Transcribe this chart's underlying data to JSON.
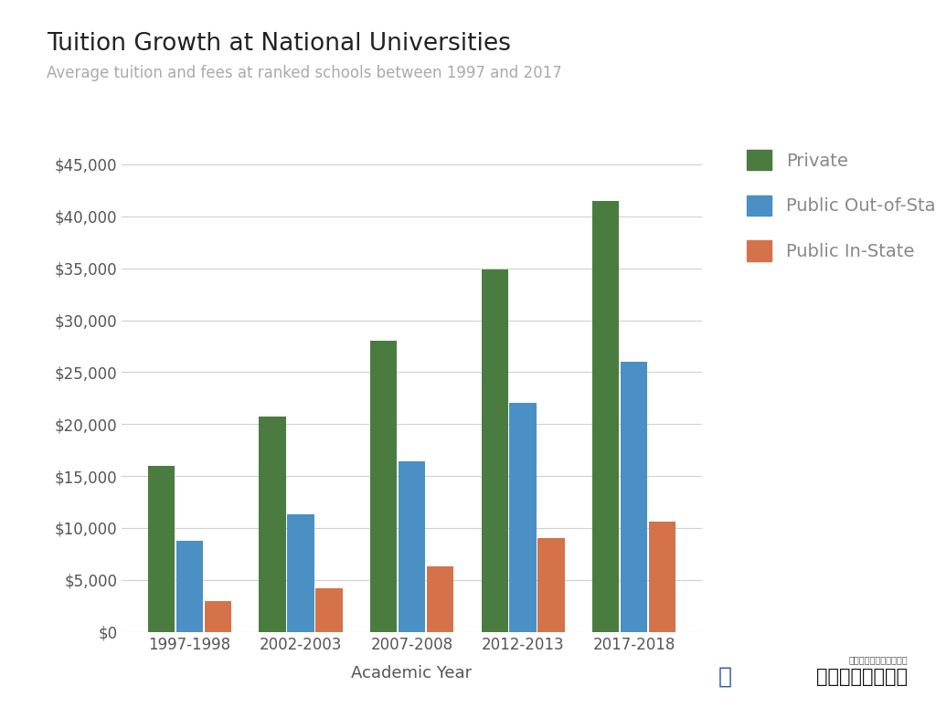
{
  "title": "Tuition Growth at National Universities",
  "subtitle": "Average tuition and fees at ranked schools between 1997 and 2017",
  "xlabel": "Academic Year",
  "categories": [
    "1997-1998",
    "2002-2003",
    "2007-2008",
    "2012-2013",
    "2017-2018"
  ],
  "private": [
    16000,
    20700,
    28000,
    34900,
    41500
  ],
  "public_out": [
    8800,
    11300,
    16400,
    22000,
    26000
  ],
  "public_in": [
    3000,
    4200,
    6300,
    9000,
    10600
  ],
  "color_private": "#4a7c3f",
  "color_public_out": "#4a90c4",
  "color_public_in": "#d4724a",
  "background_color": "#ffffff",
  "grid_color": "#d0d0d0",
  "title_fontsize": 19,
  "subtitle_fontsize": 12,
  "label_fontsize": 13,
  "tick_fontsize": 12,
  "legend_fontsize": 14,
  "ylim": [
    0,
    47000
  ],
  "yticks": [
    0,
    5000,
    10000,
    15000,
    20000,
    25000,
    30000,
    35000,
    40000,
    45000
  ],
  "bar_width": 0.24,
  "bar_gap": 0.015,
  "legend_label_color": "#888888",
  "watermark_text": "美国人寿保险指南",
  "watermark_subtext": "最专业的人寿保险和平台"
}
